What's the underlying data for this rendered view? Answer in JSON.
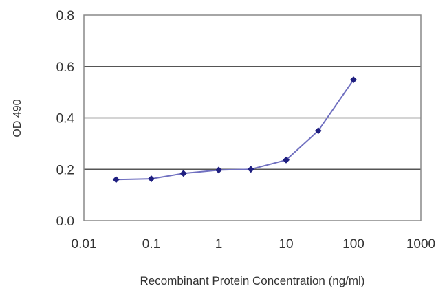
{
  "chart_data": {
    "type": "line",
    "title": "",
    "xlabel": "Recombinant Protein Concentration (ng/ml)",
    "ylabel": "OD 490",
    "xscale": "log",
    "xlim": [
      0.01,
      1000
    ],
    "ylim": [
      0,
      0.8
    ],
    "x_ticks": [
      "0.01",
      "0.1",
      "1",
      "10",
      "100",
      "1000"
    ],
    "y_ticks": [
      "0.0",
      "0.2",
      "0.4",
      "0.6",
      "0.8"
    ],
    "grid": "horizontal",
    "legend": "none",
    "series": [
      {
        "x": [
          0.03,
          0.1,
          0.3,
          1,
          3,
          10,
          30,
          100
        ],
        "y": [
          0.16,
          0.163,
          0.184,
          0.197,
          0.2,
          0.236,
          0.35,
          0.548
        ],
        "color": "#1f1f80",
        "line_color": "#7070c0"
      }
    ]
  }
}
